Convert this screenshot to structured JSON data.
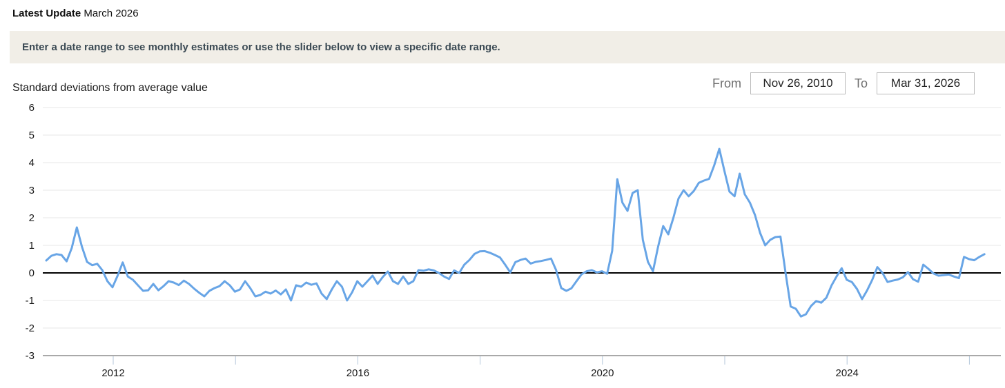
{
  "header": {
    "label_bold": "Latest Update",
    "label_value": "March 2026"
  },
  "banner": {
    "text": "Enter a date range to see monthly estimates or use the slider below to view a specific date range."
  },
  "controls": {
    "from_label": "From",
    "from_value": "Nov 26, 2010",
    "to_label": "To",
    "to_value": "Mar 31, 2026"
  },
  "chart_data": {
    "type": "line",
    "title": "Standard deviations from average value",
    "xlabel": "",
    "ylabel": "Standard deviations from average value",
    "ylim": [
      -3,
      6
    ],
    "y_ticks": [
      6,
      5,
      4,
      3,
      2,
      1,
      0,
      -1,
      -2,
      -3
    ],
    "grid": true,
    "zero_line": true,
    "legend_position": "none",
    "colors": {
      "line": "#68a5e6",
      "grid": "#e7e7e7",
      "zero_line": "#000000",
      "axis_base": "#a9a9a9",
      "x_tick": "#b3c6da",
      "tick_text": "#1a1a1a"
    },
    "x_axis": {
      "start_year_frac": 2010.905,
      "end_year_frac": 2026.246,
      "tick_years": [
        2012,
        2014,
        2016,
        2018,
        2020,
        2022,
        2024,
        2026
      ],
      "labeled_tick_years": [
        2012,
        2016,
        2020,
        2024
      ]
    },
    "series": [
      {
        "name": "Standard deviations from average value",
        "frequency": "monthly",
        "start": "2010-11",
        "end": "2026-03",
        "values": [
          0.45,
          0.62,
          0.68,
          0.65,
          0.42,
          0.9,
          1.65,
          0.95,
          0.4,
          0.28,
          0.33,
          0.1,
          -0.3,
          -0.52,
          -0.1,
          0.38,
          -0.13,
          -0.25,
          -0.45,
          -0.65,
          -0.63,
          -0.4,
          -0.63,
          -0.48,
          -0.3,
          -0.35,
          -0.44,
          -0.28,
          -0.4,
          -0.57,
          -0.72,
          -0.85,
          -0.65,
          -0.55,
          -0.48,
          -0.3,
          -0.45,
          -0.68,
          -0.6,
          -0.3,
          -0.55,
          -0.85,
          -0.8,
          -0.68,
          -0.75,
          -0.64,
          -0.78,
          -0.6,
          -1.0,
          -0.45,
          -0.5,
          -0.35,
          -0.43,
          -0.38,
          -0.75,
          -0.95,
          -0.6,
          -0.3,
          -0.5,
          -1.0,
          -0.7,
          -0.3,
          -0.5,
          -0.3,
          -0.1,
          -0.4,
          -0.15,
          0.05,
          -0.3,
          -0.4,
          -0.13,
          -0.4,
          -0.3,
          0.1,
          0.08,
          0.13,
          0.09,
          0.0,
          -0.13,
          -0.22,
          0.09,
          0.0,
          0.3,
          0.47,
          0.69,
          0.78,
          0.79,
          0.73,
          0.65,
          0.56,
          0.3,
          0.02,
          0.39,
          0.47,
          0.52,
          0.34,
          0.4,
          0.43,
          0.47,
          0.52,
          0.1,
          -0.55,
          -0.65,
          -0.56,
          -0.3,
          -0.05,
          0.06,
          0.1,
          0.02,
          0.06,
          -0.03,
          0.8,
          3.4,
          2.55,
          2.25,
          2.9,
          3.0,
          1.2,
          0.4,
          0.06,
          0.95,
          1.7,
          1.4,
          2.0,
          2.7,
          3.0,
          2.78,
          2.97,
          3.27,
          3.35,
          3.41,
          3.9,
          4.5,
          3.7,
          2.95,
          2.78,
          3.6,
          2.85,
          2.55,
          2.1,
          1.45,
          1.0,
          1.2,
          1.3,
          1.32,
          0.0,
          -1.22,
          -1.3,
          -1.58,
          -1.5,
          -1.2,
          -1.02,
          -1.08,
          -0.9,
          -0.46,
          -0.13,
          0.17,
          -0.25,
          -0.33,
          -0.58,
          -0.95,
          -0.63,
          -0.25,
          0.21,
          0.0,
          -0.33,
          -0.28,
          -0.24,
          -0.16,
          0.03,
          -0.23,
          -0.32,
          0.3,
          0.15,
          -0.02,
          -0.1,
          -0.08,
          -0.06,
          -0.13,
          -0.19,
          0.58,
          0.5,
          0.46,
          0.58,
          0.68
        ]
      }
    ]
  }
}
